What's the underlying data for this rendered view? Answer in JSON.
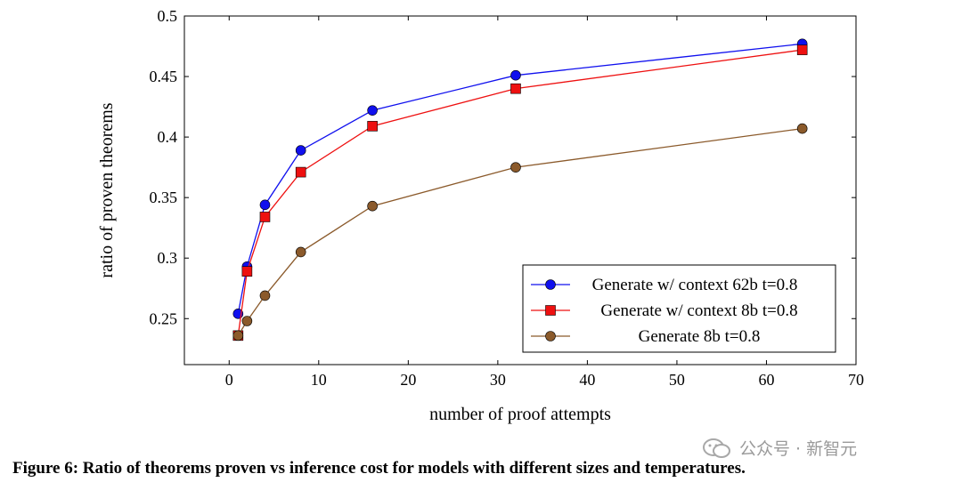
{
  "chart_data": {
    "type": "line",
    "xlabel": "number of proof attempts",
    "ylabel": "ratio of proven theorems",
    "xlim": [
      -5,
      70
    ],
    "ylim": [
      0.212,
      0.5
    ],
    "xticks": [
      0,
      10,
      20,
      30,
      40,
      50,
      60,
      70
    ],
    "yticks": [
      0.25,
      0.3,
      0.35,
      0.4,
      0.45,
      0.5
    ],
    "ytick_labels": [
      "0.25",
      "0.3",
      "0.35",
      "0.4",
      "0.45",
      "0.5"
    ],
    "legend_position": "bottom-right",
    "series": [
      {
        "name": "Generate w/ context 62b t=0.8",
        "color": "#1010ee",
        "marker": "circle",
        "x": [
          1,
          2,
          4,
          8,
          16,
          32,
          64
        ],
        "y": [
          0.254,
          0.293,
          0.344,
          0.389,
          0.422,
          0.451,
          0.477
        ]
      },
      {
        "name": "Generate w/ context 8b t=0.8",
        "color": "#ee1010",
        "marker": "square",
        "x": [
          1,
          2,
          4,
          8,
          16,
          32,
          64
        ],
        "y": [
          0.236,
          0.289,
          0.334,
          0.371,
          0.409,
          0.44,
          0.472
        ]
      },
      {
        "name": "Generate 8b t=0.8",
        "color": "#8b5a2b",
        "marker": "circle",
        "x": [
          1,
          2,
          4,
          8,
          16,
          32,
          64
        ],
        "y": [
          0.236,
          0.248,
          0.269,
          0.305,
          0.343,
          0.375,
          0.407
        ]
      }
    ]
  },
  "caption": "Figure 6: Ratio of theorems proven vs inference cost for models with different sizes and temperatures.",
  "watermark": {
    "text": "公众号 · 新智元",
    "icon": "wechat-icon"
  }
}
